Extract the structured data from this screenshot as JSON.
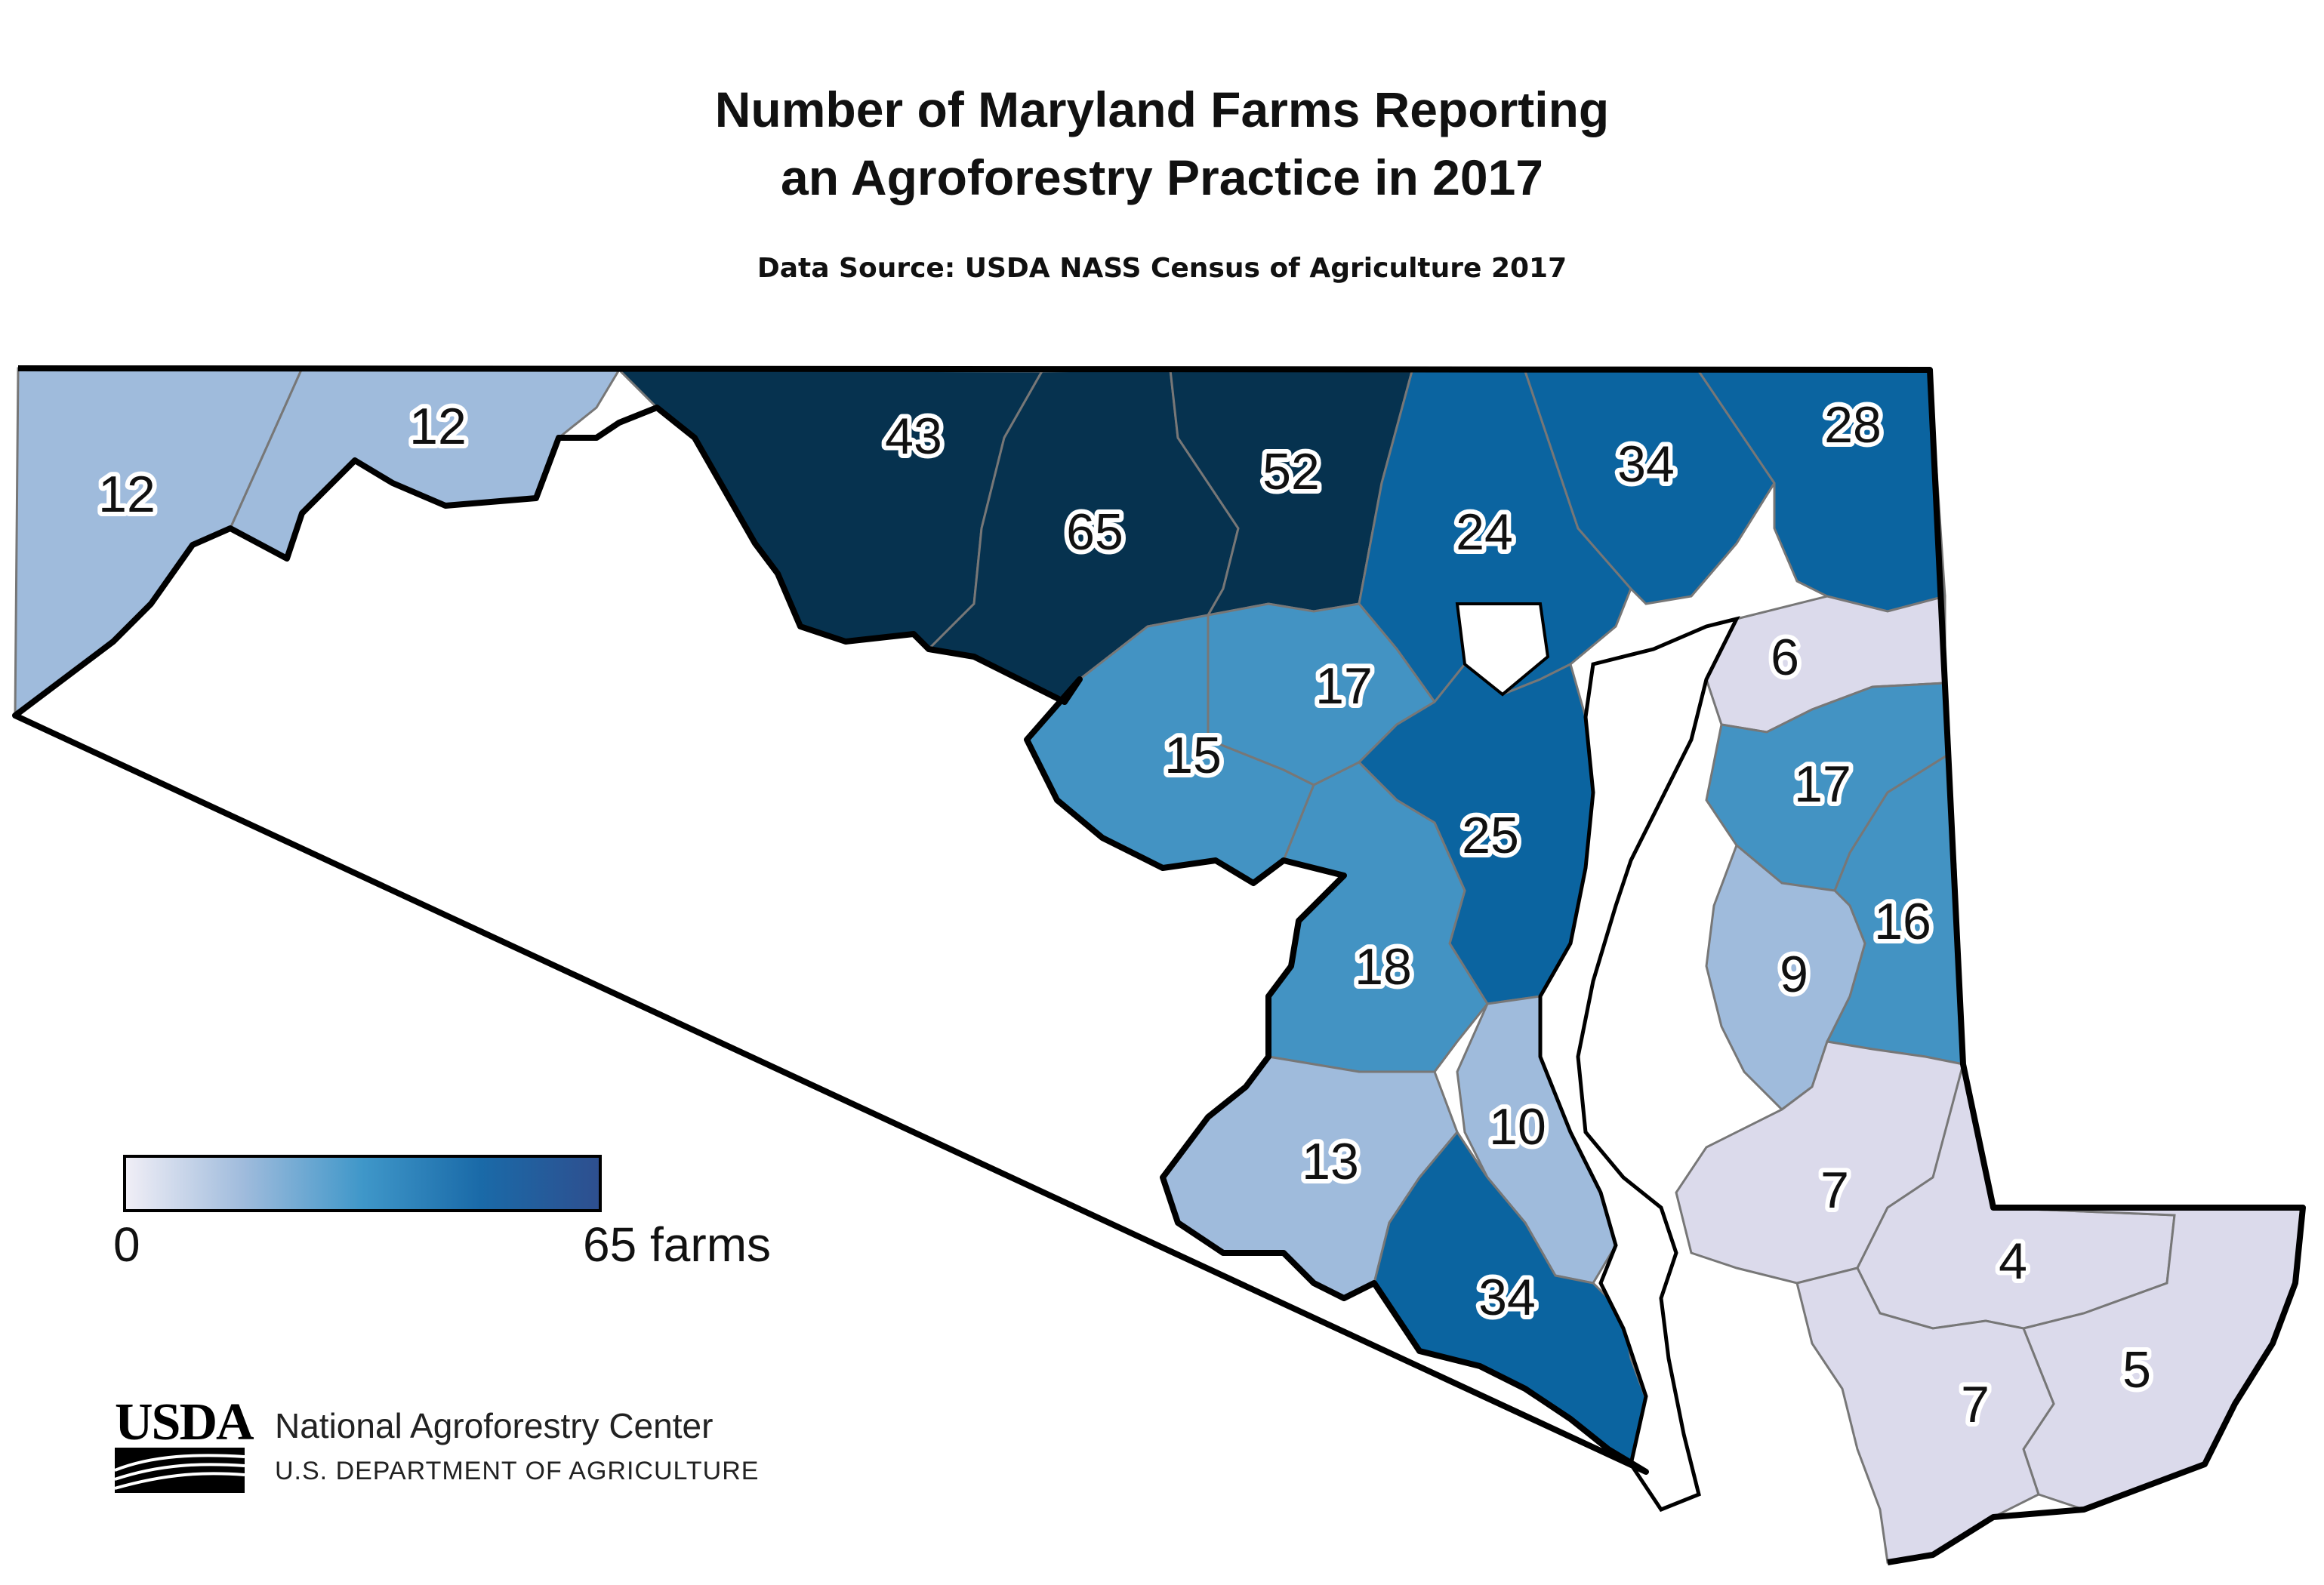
{
  "title_line1": "Number of Maryland Farms Reporting",
  "title_line2": "an Agroforestry Practice in 2017",
  "source": "Data Source: USDA NASS Census of Agriculture 2017",
  "legend": {
    "min_label": "0",
    "max_label": "65 farms",
    "min_value": 0,
    "max_value": 65,
    "colors": [
      "#f0eef6",
      "#9fbbdc",
      "#3f97c9",
      "#1a6aa8",
      "#2e4f8f"
    ]
  },
  "colors": {
    "light": "#dbdaeb",
    "pale_blue": "#9fbbdc",
    "mid_blue": "#4393c3",
    "blue": "#0b64a0",
    "dark": "#06324f",
    "no_data": "#ffffff"
  },
  "counties": [
    {
      "id": "garrett",
      "value": 12,
      "label": "12"
    },
    {
      "id": "allegany",
      "value": 12,
      "label": "12"
    },
    {
      "id": "washington",
      "value": 43,
      "label": "43"
    },
    {
      "id": "frederick",
      "value": 65,
      "label": "65"
    },
    {
      "id": "carroll",
      "value": 52,
      "label": "52"
    },
    {
      "id": "baltimore",
      "value": 24,
      "label": "24"
    },
    {
      "id": "harford",
      "value": 34,
      "label": "34"
    },
    {
      "id": "cecil",
      "value": 28,
      "label": "28"
    },
    {
      "id": "howard",
      "value": 17,
      "label": "17"
    },
    {
      "id": "montgomery",
      "value": 15,
      "label": "15"
    },
    {
      "id": "anne-arundel",
      "value": 25,
      "label": "25"
    },
    {
      "id": "prince-georges",
      "value": 18,
      "label": "18"
    },
    {
      "id": "charles",
      "value": 13,
      "label": "13"
    },
    {
      "id": "calvert",
      "value": 10,
      "label": "10"
    },
    {
      "id": "st-marys",
      "value": 34,
      "label": "34"
    },
    {
      "id": "kent",
      "value": 6,
      "label": "6"
    },
    {
      "id": "queen-annes",
      "value": 17,
      "label": "17"
    },
    {
      "id": "caroline",
      "value": 16,
      "label": "16"
    },
    {
      "id": "talbot",
      "value": 9,
      "label": "9"
    },
    {
      "id": "dorchester",
      "value": 7,
      "label": "7"
    },
    {
      "id": "wicomico",
      "value": 4,
      "label": "4"
    },
    {
      "id": "worcester",
      "value": 5,
      "label": "5"
    },
    {
      "id": "somerset",
      "value": 7,
      "label": "7"
    }
  ],
  "logo_text": "USDA",
  "org_name": "National Agroforestry Center",
  "dept_name": "U.S. DEPARTMENT OF AGRICULTURE"
}
